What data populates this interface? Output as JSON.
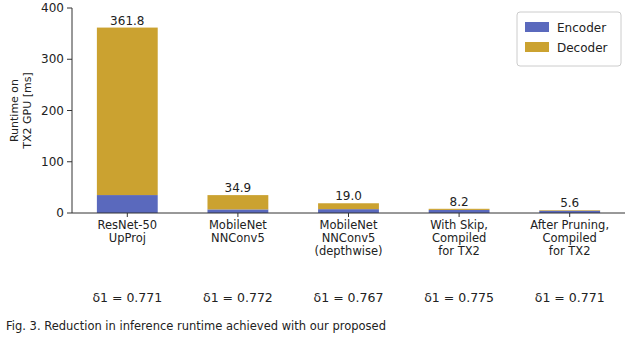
{
  "chart_data": {
    "type": "bar",
    "stacked": true,
    "y_label": "Runtime on\nTX2 GPU [ms]",
    "categories": [
      "ResNet-50\nUpProj",
      "MobileNet\nNNConv5",
      "MobileNet\nNNConv5\n(depthwise)",
      "With Skip,\nCompiled\nfor TX2",
      "After Pruning,\nCompiled\nfor TX2"
    ],
    "series": [
      {
        "name": "Encoder",
        "color": "#5a69bd",
        "values": [
          35,
          7,
          7.5,
          6,
          4.5
        ]
      },
      {
        "name": "Decoder",
        "color": "#cba230",
        "values": [
          326.8,
          27.9,
          11.5,
          2.2,
          1.1
        ]
      }
    ],
    "totals": [
      361.8,
      34.9,
      19.0,
      8.2,
      5.6
    ],
    "total_labels": [
      "361.8",
      "34.9",
      "19.0",
      "8.2",
      "5.6"
    ],
    "annotations": [
      "δ1 = 0.771",
      "δ1 = 0.772",
      "δ1 = 0.767",
      "δ1 = 0.775",
      "δ1 = 0.771"
    ],
    "caption": "Fig. 3. Reduction in inference runtime achieved with our proposed",
    "ylim": [
      0,
      400
    ],
    "yticks": [
      0,
      100,
      200,
      300,
      400
    ],
    "grid": false,
    "legend": "upper right",
    "data_labels": false
  }
}
